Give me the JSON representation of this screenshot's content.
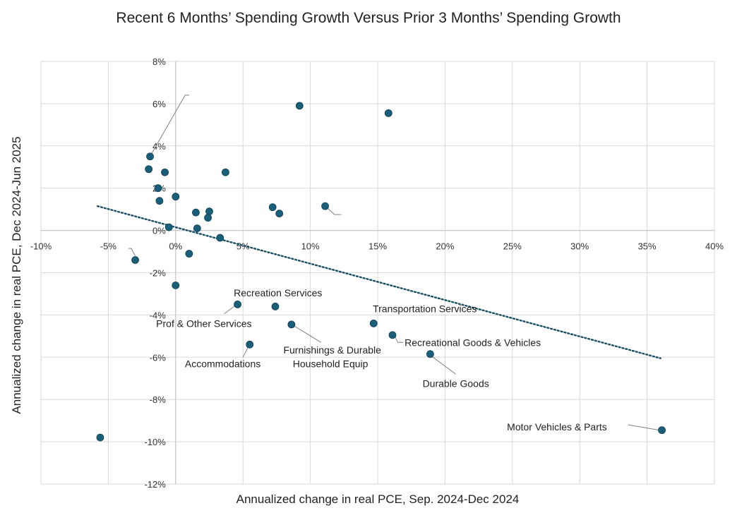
{
  "chart_data": {
    "type": "scatter",
    "title": "Recent 6 Months’ Spending Growth Versus Prior 3 Months’ Spending Growth",
    "xlabel": "Annualized change in real PCE, Sep. 2024-Dec 2024",
    "ylabel": "Annualized change in real PCE, Dec 2024-Jun 2025",
    "xlim": [
      -10,
      40
    ],
    "ylim": [
      -12,
      8
    ],
    "x_ticks": [
      -10,
      -5,
      0,
      5,
      10,
      15,
      20,
      25,
      30,
      35,
      40
    ],
    "y_ticks": [
      -12,
      -10,
      -8,
      -6,
      -4,
      -2,
      0,
      2,
      4,
      6,
      8
    ],
    "x_tick_labels": [
      "-10%",
      "-5%",
      "0%",
      "5%",
      "10%",
      "15%",
      "20%",
      "25%",
      "30%",
      "35%",
      "40%"
    ],
    "y_tick_labels": [
      "-12%",
      "-10%",
      "-8%",
      "-6%",
      "-4%",
      "-2%",
      "0%",
      "2%",
      "4%",
      "6%",
      "8%"
    ],
    "grid": true,
    "point_color": "#1a5f7a",
    "trend_color": "#1a4f63",
    "points": [
      {
        "x": 9.2,
        "y": 5.9
      },
      {
        "x": 15.8,
        "y": 5.55
      },
      {
        "x": -1.9,
        "y": 3.5
      },
      {
        "x": -2.0,
        "y": 2.9
      },
      {
        "x": -0.8,
        "y": 2.75
      },
      {
        "x": 3.7,
        "y": 2.75
      },
      {
        "x": -1.3,
        "y": 2.0
      },
      {
        "x": 0.0,
        "y": 1.6
      },
      {
        "x": -1.2,
        "y": 1.4
      },
      {
        "x": 7.2,
        "y": 1.1
      },
      {
        "x": 11.1,
        "y": 1.15
      },
      {
        "x": 1.5,
        "y": 0.85
      },
      {
        "x": 2.5,
        "y": 0.9
      },
      {
        "x": 7.7,
        "y": 0.8
      },
      {
        "x": 2.4,
        "y": 0.6
      },
      {
        "x": -0.5,
        "y": 0.15
      },
      {
        "x": 1.6,
        "y": 0.1
      },
      {
        "x": 3.3,
        "y": -0.35
      },
      {
        "x": 1.0,
        "y": -1.1
      },
      {
        "x": -3.0,
        "y": -1.4
      },
      {
        "x": 0.0,
        "y": -2.6
      },
      {
        "x": 4.6,
        "y": -3.5
      },
      {
        "x": 7.4,
        "y": -3.6
      },
      {
        "x": 8.6,
        "y": -4.45
      },
      {
        "x": 14.7,
        "y": -4.4
      },
      {
        "x": 16.1,
        "y": -4.95
      },
      {
        "x": 5.5,
        "y": -5.4
      },
      {
        "x": 18.9,
        "y": -5.85
      },
      {
        "x": 36.1,
        "y": -9.45
      },
      {
        "x": -5.6,
        "y": -9.8
      }
    ],
    "annotations": [
      {
        "text": "Recreation Services",
        "x": 7.6,
        "y": -2.95,
        "align": "middle",
        "leader": null
      },
      {
        "text": "Prof & Other Services",
        "x": 2.1,
        "y": -4.4,
        "align": "middle",
        "leader": [
          [
            4.45,
            -3.55
          ],
          [
            3.6,
            -3.95
          ]
        ]
      },
      {
        "text": "Transportation Services",
        "x": 18.5,
        "y": -3.7,
        "align": "middle",
        "leader": null
      },
      {
        "text": "Furnishings & Durable",
        "x": 8.0,
        "y": -5.65,
        "align": "start",
        "leader": [
          [
            8.75,
            -4.5
          ],
          [
            10.8,
            -5.3
          ]
        ]
      },
      {
        "text": "Household Equip",
        "x": 8.7,
        "y": -6.3,
        "align": "start",
        "leader": null
      },
      {
        "text": "Recreational Goods & Vehicles",
        "x": 17.0,
        "y": -5.3,
        "align": "start",
        "leader": [
          [
            16.3,
            -5.05
          ],
          [
            16.5,
            -5.3
          ],
          [
            16.9,
            -5.3
          ]
        ]
      },
      {
        "text": "Accommodations",
        "x": 3.5,
        "y": -6.3,
        "align": "middle",
        "leader": [
          [
            5.4,
            -5.5
          ],
          [
            5.0,
            -6.0
          ]
        ]
      },
      {
        "text": "Durable Goods",
        "x": 20.8,
        "y": -7.25,
        "align": "middle",
        "leader": [
          [
            19.0,
            -5.95
          ],
          [
            20.8,
            -6.8
          ]
        ]
      },
      {
        "text": "Motor Vehicles & Parts",
        "x": 24.6,
        "y": -9.3,
        "align": "start",
        "leader": [
          [
            35.9,
            -9.45
          ],
          [
            33.6,
            -9.2
          ]
        ]
      }
    ],
    "unlabeled_leaders": [
      [
        [
          -1.9,
          3.5
        ],
        [
          0.7,
          6.4
        ],
        [
          1.0,
          6.4
        ]
      ],
      [
        [
          11.2,
          1.1
        ],
        [
          11.8,
          0.75
        ],
        [
          12.3,
          0.75
        ]
      ],
      [
        [
          -3.0,
          -1.2
        ],
        [
          -3.3,
          -0.85
        ],
        [
          -3.5,
          -0.85
        ]
      ]
    ],
    "trend_line": {
      "x": [
        -5.8,
        36.0
      ],
      "y": [
        1.15,
        -6.05
      ]
    }
  }
}
